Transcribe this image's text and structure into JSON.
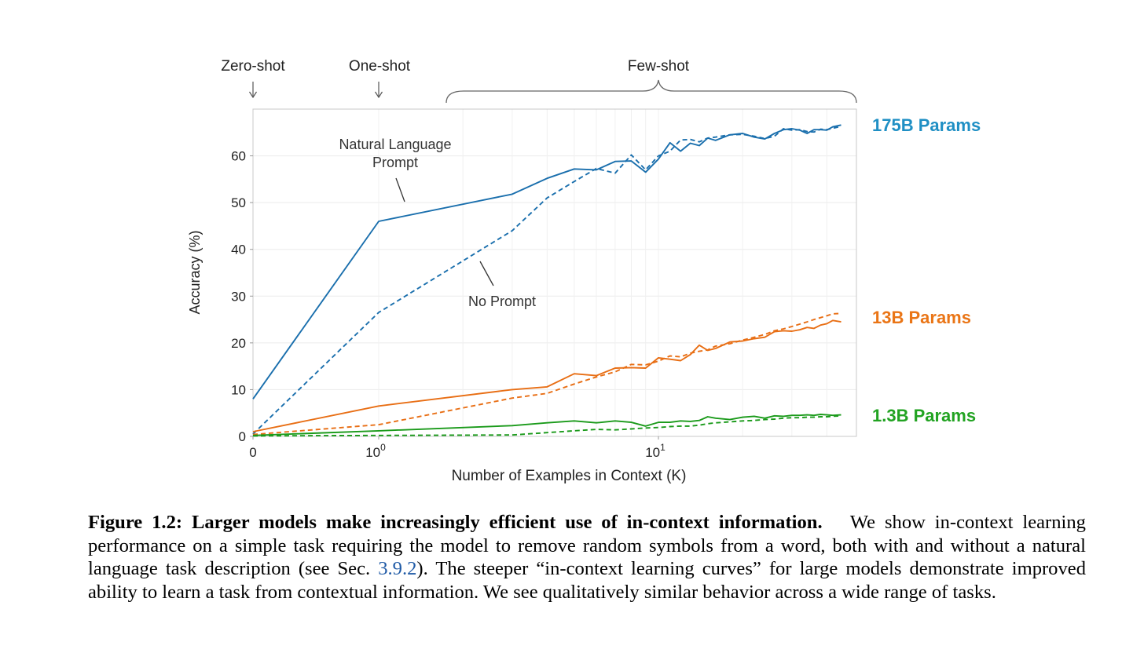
{
  "chart_data": {
    "type": "line",
    "title": "",
    "xlabel": "Number of Examples in Context  (K)",
    "ylabel": "Accuracy (%)",
    "xscale": "symlog",
    "xlim": [
      0,
      45
    ],
    "ylim": [
      0,
      70
    ],
    "yticks": [
      0,
      10,
      20,
      30,
      40,
      50,
      60
    ],
    "xtick_labels": [
      {
        "value": 0,
        "base": "0",
        "exp": ""
      },
      {
        "value": 1,
        "base": "10",
        "exp": "0"
      },
      {
        "value": 10,
        "base": "10",
        "exp": "1"
      }
    ],
    "regions": [
      {
        "label": "Zero-shot",
        "marker": "arrow",
        "at": 0
      },
      {
        "label": "One-shot",
        "marker": "arrow",
        "at": 1
      },
      {
        "label": "Few-shot",
        "marker": "brace",
        "from": 1.8,
        "to": 45
      }
    ],
    "annotations": [
      {
        "text": [
          "Natural Language",
          "Prompt"
        ],
        "points_to": "solid lines"
      },
      {
        "text": [
          "No Prompt"
        ],
        "points_to": "dashed lines"
      }
    ],
    "series": [
      {
        "name": "175B Params",
        "color": "#1a6fad",
        "label_color": "#1f8fc4",
        "style": "solid",
        "x": [
          0,
          1,
          3,
          4,
          5,
          6,
          7,
          8,
          9,
          10,
          11,
          12,
          13,
          14,
          15,
          16,
          18,
          20,
          22,
          24,
          26,
          28,
          30,
          32,
          34,
          36,
          38,
          40,
          42,
          45
        ],
        "y": [
          8,
          46,
          51.8,
          55.2,
          57.2,
          57,
          58.8,
          58.9,
          56.5,
          59.3,
          62.8,
          61,
          62.7,
          62.2,
          63.8,
          63.3,
          64.5,
          64.8,
          64,
          63.6,
          64.8,
          65.6,
          65.8,
          65.5,
          64.8,
          65.6,
          65.6,
          65.5,
          66.2,
          66.6
        ]
      },
      {
        "name": "175B Params (no prompt)",
        "color": "#1a6fad",
        "style": "dashed",
        "x": [
          0,
          1,
          3,
          4,
          5,
          6,
          7,
          8,
          9,
          10,
          11,
          12,
          13,
          14,
          15,
          16,
          18,
          20,
          22,
          24,
          26,
          28,
          30,
          32,
          34,
          36,
          38,
          40,
          42,
          45
        ],
        "y": [
          0.5,
          26.5,
          44,
          51,
          54.5,
          57.3,
          56.3,
          60.2,
          57,
          60,
          61,
          63.4,
          63.5,
          63,
          63.8,
          64,
          64.5,
          64.6,
          64.2,
          63.7,
          64.2,
          65.8,
          65.5,
          65.6,
          65.2,
          65.1,
          65.7,
          65.6,
          65.9,
          66.3
        ]
      },
      {
        "name": "13B Params",
        "color": "#e86e14",
        "label_color": "#ea7516",
        "style": "solid",
        "x": [
          0,
          1,
          3,
          4,
          5,
          6,
          7,
          8,
          9,
          10,
          11,
          12,
          13,
          14,
          15,
          16,
          18,
          20,
          22,
          24,
          26,
          28,
          30,
          32,
          34,
          36,
          38,
          40,
          42,
          45
        ],
        "y": [
          1,
          6.5,
          10,
          10.6,
          13.4,
          13,
          14.6,
          14.7,
          14.6,
          16.8,
          16.5,
          16.2,
          17.5,
          19.5,
          18.4,
          18.8,
          20.2,
          20.4,
          20.9,
          21.2,
          22.4,
          22.6,
          22.5,
          22.8,
          23.3,
          23.1,
          23.8,
          24.1,
          24.8,
          24.5
        ]
      },
      {
        "name": "13B Params (no prompt)",
        "color": "#e86e14",
        "style": "dashed",
        "x": [
          0,
          1,
          3,
          4,
          5,
          6,
          7,
          8,
          9,
          10,
          11,
          12,
          13,
          14,
          15,
          16,
          18,
          20,
          22,
          24,
          26,
          28,
          30,
          32,
          34,
          36,
          38,
          40,
          42,
          45
        ],
        "y": [
          0.4,
          2.5,
          8.2,
          9.2,
          11.2,
          12.7,
          13.8,
          15.4,
          15.3,
          16.1,
          17.2,
          17.0,
          17.8,
          18.2,
          18.5,
          19.3,
          19.8,
          20.6,
          21.2,
          21.8,
          22.6,
          23.0,
          23.5,
          24.0,
          24.5,
          25.0,
          25.4,
          25.8,
          26.2,
          26.3
        ]
      },
      {
        "name": "1.3B Params",
        "color": "#1a9a1a",
        "label_color": "#22a322",
        "style": "solid",
        "x": [
          0,
          1,
          3,
          4,
          5,
          6,
          7,
          8,
          9,
          10,
          11,
          12,
          13,
          14,
          15,
          16,
          18,
          20,
          22,
          24,
          26,
          28,
          30,
          32,
          34,
          36,
          38,
          40,
          42,
          45
        ],
        "y": [
          0.2,
          1.2,
          2.3,
          2.9,
          3.3,
          2.9,
          3.3,
          3.0,
          2.2,
          3.0,
          3.0,
          3.3,
          3.2,
          3.4,
          4.2,
          3.9,
          3.6,
          4.1,
          4.3,
          3.9,
          4.4,
          4.3,
          4.5,
          4.5,
          4.6,
          4.5,
          4.7,
          4.6,
          4.5,
          4.6
        ]
      },
      {
        "name": "1.3B Params (no prompt)",
        "color": "#1a9a1a",
        "style": "dashed",
        "x": [
          0,
          1,
          3,
          4,
          5,
          6,
          7,
          8,
          9,
          10,
          11,
          12,
          13,
          14,
          15,
          16,
          18,
          20,
          22,
          24,
          26,
          28,
          30,
          32,
          34,
          36,
          38,
          40,
          42,
          45
        ],
        "y": [
          0.1,
          0.2,
          0.3,
          0.8,
          1.2,
          1.5,
          1.4,
          1.6,
          1.8,
          1.9,
          2.1,
          2.2,
          2.2,
          2.4,
          2.7,
          2.9,
          3.1,
          3.3,
          3.4,
          3.6,
          3.7,
          3.9,
          4.0,
          4.0,
          4.1,
          4.1,
          4.2,
          4.2,
          4.3,
          4.4
        ]
      }
    ]
  },
  "caption": {
    "figure_label": "Figure 1.2:",
    "bold_title": "Larger models make increasingly efficient use of in-context information.",
    "body_start": "We show in-context learning performance on a simple task requiring the model to remove random symbols from a word, both with and without a natural language task description (see Sec.",
    "section_ref": "3.9.2",
    "body_end": "). The steeper “in-context learning curves” for large models demonstrate improved ability to learn a task from contextual information. We see qualitatively similar behavior across a wide range of tasks."
  }
}
